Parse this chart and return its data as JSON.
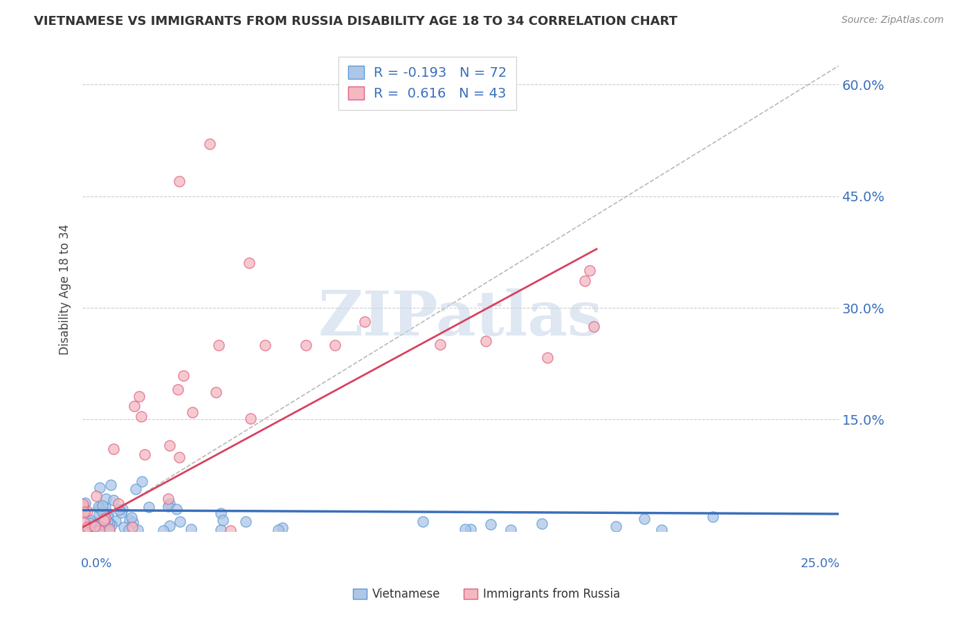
{
  "title": "VIETNAMESE VS IMMIGRANTS FROM RUSSIA DISABILITY AGE 18 TO 34 CORRELATION CHART",
  "source": "Source: ZipAtlas.com",
  "ylabel": "Disability Age 18 to 34",
  "xlim": [
    0.0,
    0.25
  ],
  "ylim": [
    0.0,
    0.65
  ],
  "yticks": [
    0.15,
    0.3,
    0.45,
    0.6
  ],
  "ytick_labels": [
    "15.0%",
    "30.0%",
    "45.0%",
    "60.0%"
  ],
  "r_vietnamese": -0.193,
  "n_vietnamese": 72,
  "r_russia": 0.616,
  "n_russia": 43,
  "color_vietnamese_face": "#aec6e8",
  "color_vietnamese_edge": "#5b9bd5",
  "color_russia_face": "#f4b8c1",
  "color_russia_edge": "#e06080",
  "color_line_vietnamese": "#3a6fba",
  "color_line_russia": "#d94060",
  "color_dash_ref": "#b0b0b0",
  "watermark_text": "ZIPatlas",
  "watermark_color": "#c8d8ea",
  "grid_color": "#cccccc",
  "text_color_blue": "#3a6fba",
  "legend_entry_1": "R = -0.193   N = 72",
  "legend_entry_2": "R =  0.616   N = 43",
  "bottom_legend_1": "Vietnamese",
  "bottom_legend_2": "Immigrants from Russia"
}
